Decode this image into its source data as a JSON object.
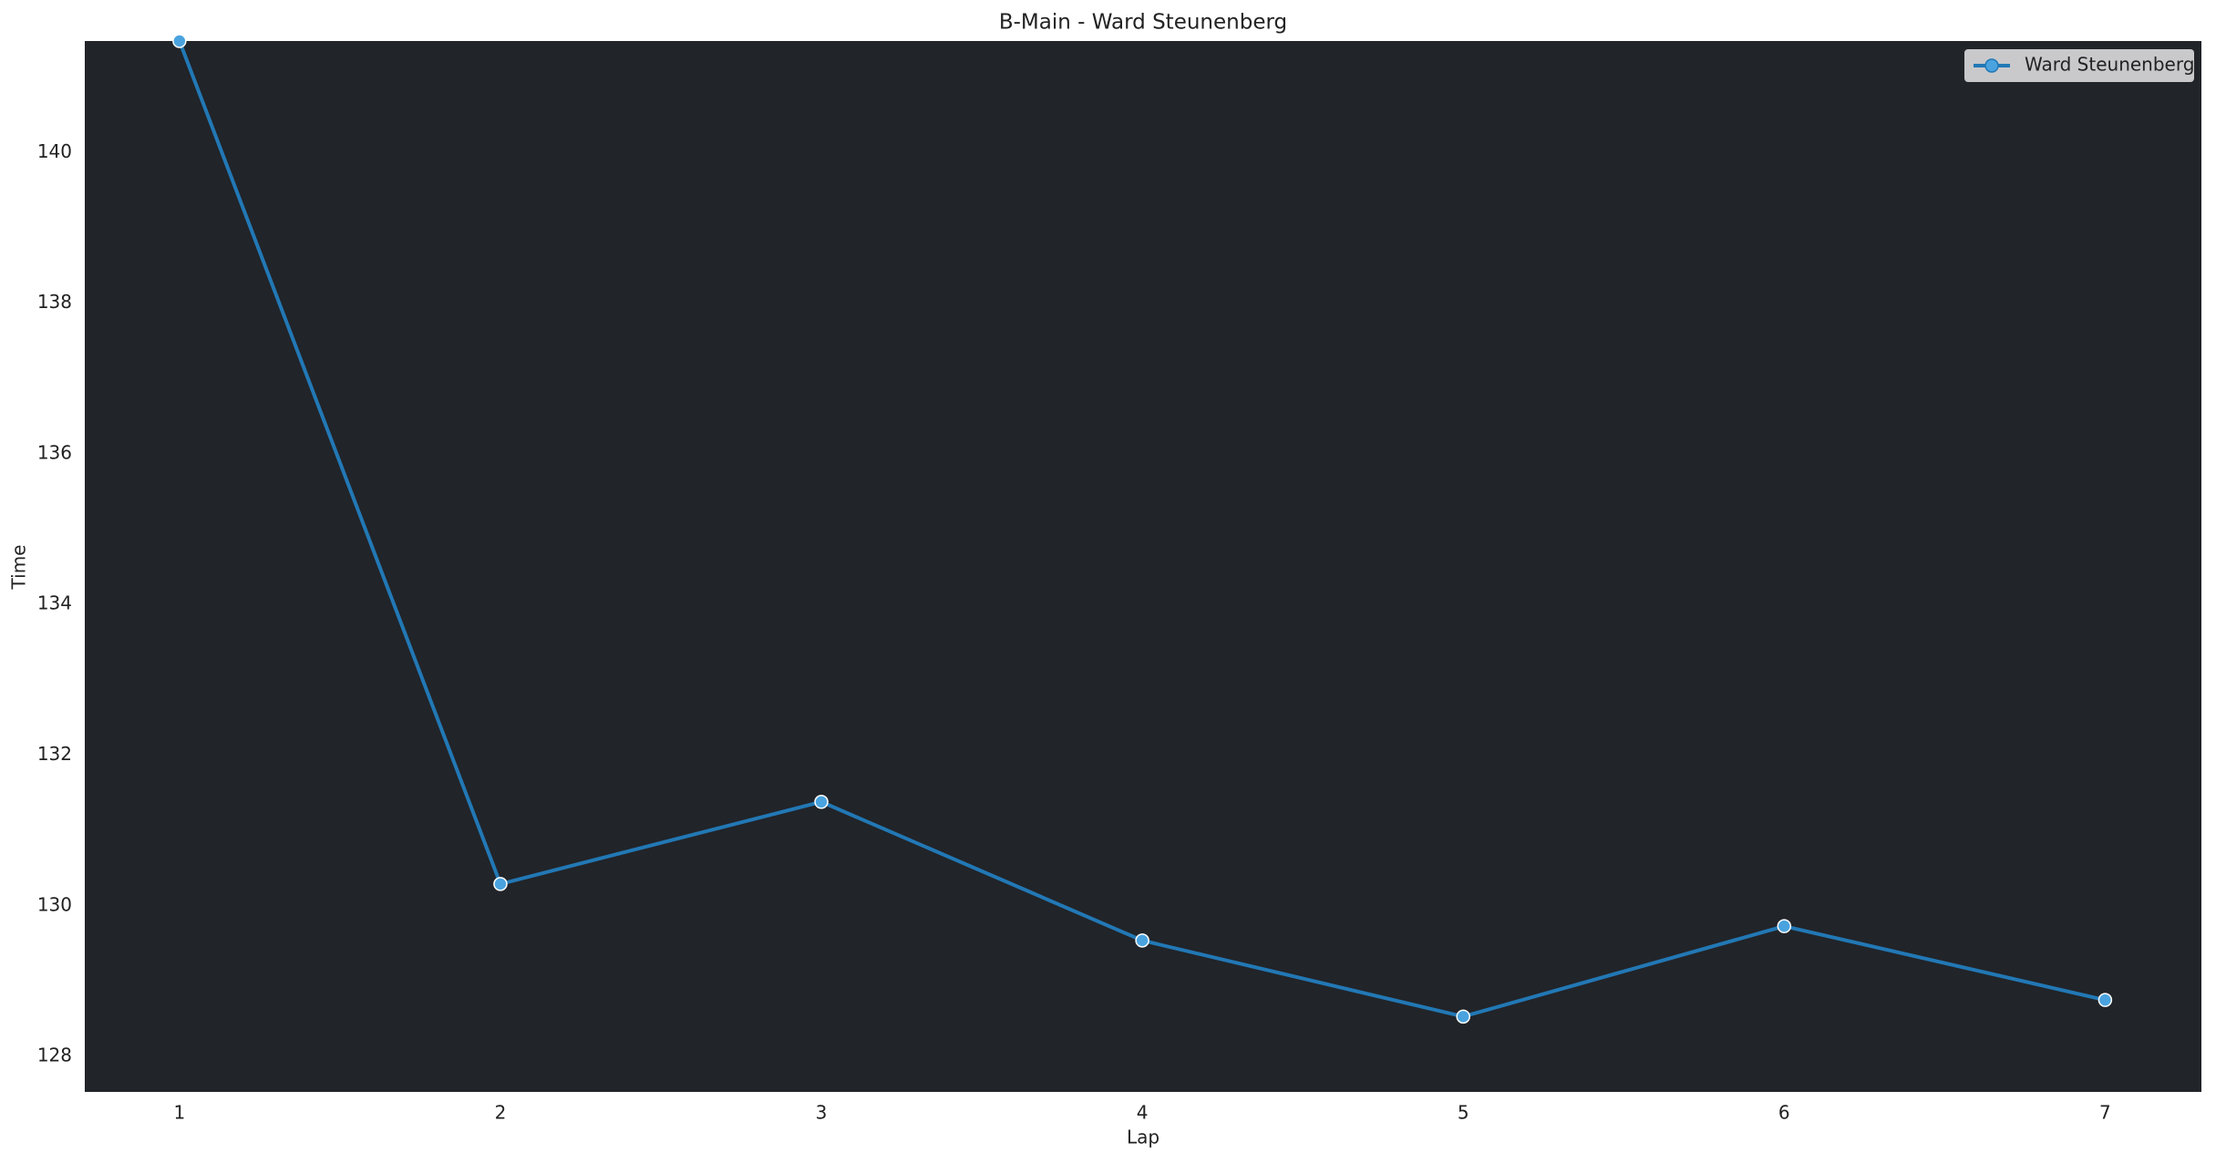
{
  "chart_data": {
    "type": "line",
    "title": "B-Main - Ward Steunenberg",
    "x_label": "Lap",
    "y_label": "Time",
    "x": [
      1,
      2,
      3,
      4,
      5,
      6,
      7
    ],
    "series": [
      {
        "name": "Ward Steunenberg",
        "color": "#2278b5",
        "marker_color": "#4aa3df",
        "values": [
          141.48,
          130.29,
          131.38,
          129.54,
          128.53,
          129.73,
          128.75
        ]
      }
    ],
    "xlim": [
      0.705,
      7.3
    ],
    "xticks": [
      1,
      2,
      3,
      4,
      5,
      6,
      7
    ],
    "ylim": [
      127.53,
      141.48
    ],
    "yticks": [
      128,
      130,
      132,
      134,
      136,
      138,
      140
    ],
    "legend": "upper right",
    "background": "#212429"
  }
}
